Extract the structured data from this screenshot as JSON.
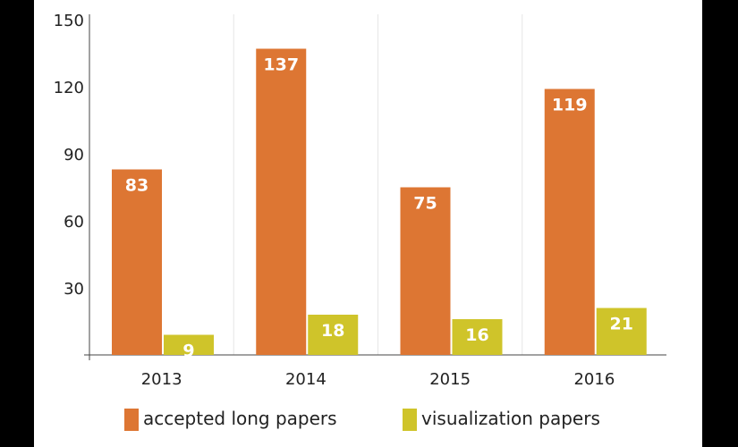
{
  "chart_data": {
    "type": "bar",
    "categories": [
      "2013",
      "2014",
      "2015",
      "2016"
    ],
    "series": [
      {
        "name": "accepted long papers",
        "values": [
          83,
          137,
          75,
          119
        ],
        "color": "#dd7633"
      },
      {
        "name": "visualization papers",
        "values": [
          9,
          18,
          16,
          21
        ],
        "color": "#cfc42a"
      }
    ],
    "ylim": [
      0,
      150
    ],
    "yticks": [
      30,
      60,
      90,
      120,
      150
    ],
    "grid": "vertical separators between categories",
    "legend_position": "bottom",
    "colors": {
      "axis": "#444444",
      "grid": "#e6e6e6",
      "background": "#ffffff",
      "outer": "#000000"
    }
  }
}
